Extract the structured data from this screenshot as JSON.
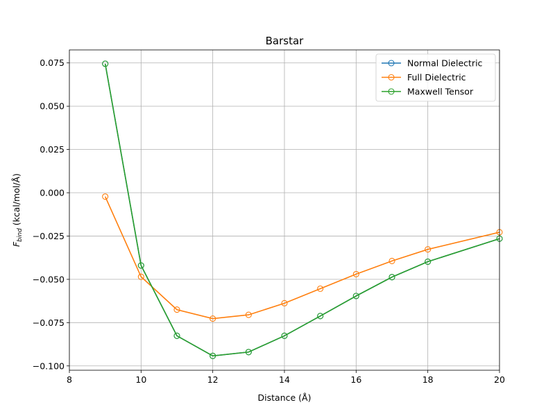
{
  "chart_data": {
    "type": "line",
    "title": "Barstar",
    "xlabel": "Distance (Å)",
    "ylabel_main": "F",
    "ylabel_sub": "bind",
    "ylabel_rest": " (kcal/mol/Å)",
    "xlim": [
      8,
      20
    ],
    "ylim": [
      -0.1025,
      0.0825
    ],
    "xticks": [
      8,
      10,
      12,
      14,
      16,
      18,
      20
    ],
    "xtick_labels": [
      "8",
      "10",
      "12",
      "14",
      "16",
      "18",
      "20"
    ],
    "yticks": [
      0.075,
      0.05,
      0.025,
      0.0,
      -0.025,
      -0.05,
      -0.075,
      -0.1
    ],
    "ytick_labels": [
      "0.075",
      "0.050",
      "0.025",
      "0.000",
      "−0.025",
      "−0.050",
      "−0.075",
      "−0.100"
    ],
    "grid": true,
    "legend_position": "top-right",
    "x": [
      9,
      10,
      11,
      12,
      13,
      14,
      15,
      16,
      17,
      18,
      20
    ],
    "series": [
      {
        "name": "Normal Dielectric",
        "color": "#1f77b4",
        "values": [
          0.0745,
          -0.042,
          -0.0826,
          -0.0942,
          -0.092,
          -0.0826,
          -0.0712,
          -0.0596,
          -0.0487,
          -0.0398,
          -0.0265
        ]
      },
      {
        "name": "Full Dielectric",
        "color": "#ff7f0e",
        "values": [
          -0.0022,
          -0.0485,
          -0.0675,
          -0.0727,
          -0.0705,
          -0.0638,
          -0.0554,
          -0.047,
          -0.0394,
          -0.0327,
          -0.0228
        ]
      },
      {
        "name": "Maxwell Tensor",
        "color": "#2ca02c",
        "values": [
          0.0745,
          -0.042,
          -0.0826,
          -0.0942,
          -0.092,
          -0.0826,
          -0.0712,
          -0.0596,
          -0.0487,
          -0.0398,
          -0.0265
        ]
      }
    ]
  }
}
